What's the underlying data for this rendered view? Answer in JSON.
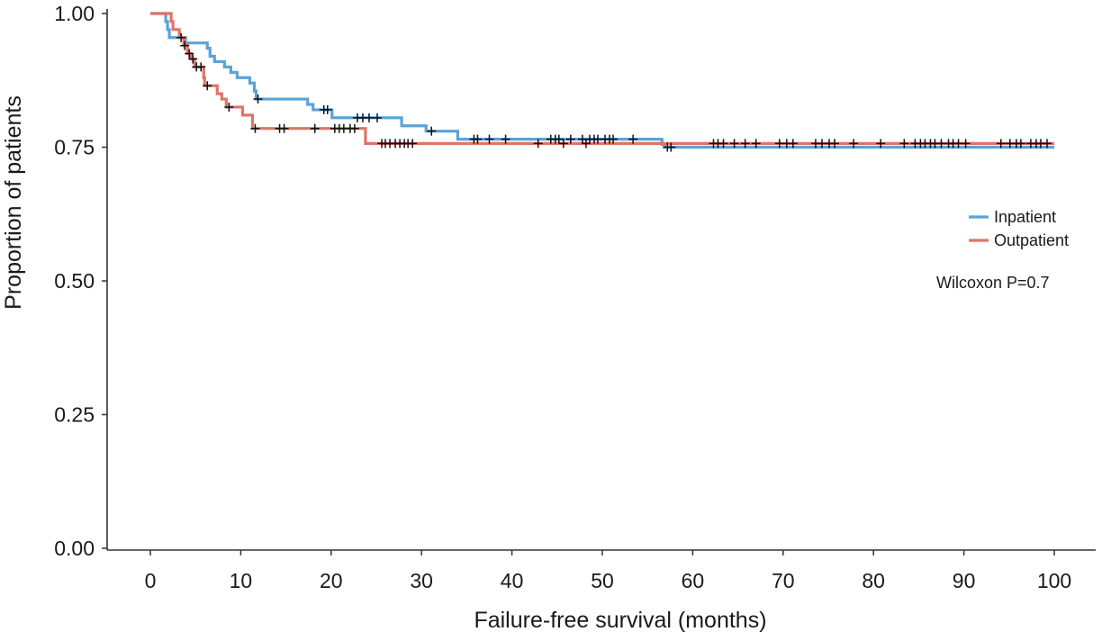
{
  "chart_data": {
    "type": "line",
    "subtype": "kaplan-meier step curve with censor marks",
    "xlabel": "Failure-free survival (months)",
    "ylabel": "Proportion of patients",
    "xlim": [
      -5,
      105
    ],
    "ylim": [
      0,
      1
    ],
    "x_ticks": [
      0,
      10,
      20,
      30,
      40,
      50,
      60,
      70,
      80,
      90,
      100
    ],
    "x_tick_labels": [
      "0",
      "10",
      "20",
      "30",
      "40",
      "50",
      "60",
      "70",
      "80",
      "90",
      "100"
    ],
    "y_ticks": [
      0,
      0.25,
      0.5,
      0.75,
      1.0
    ],
    "y_tick_labels": [
      "0.00",
      "0.25",
      "0.50",
      "0.75",
      "1.00"
    ],
    "grid": false,
    "legend_position": "right",
    "annotation": "Wilcoxon P=0.7",
    "series": [
      {
        "name": "Inpatient",
        "color": "#5ba3d9",
        "steps": [
          [
            0,
            1.0
          ],
          [
            1.7,
            0.985
          ],
          [
            1.9,
            0.97
          ],
          [
            2.1,
            0.955
          ],
          [
            3.9,
            0.945
          ],
          [
            6.3,
            0.935
          ],
          [
            6.6,
            0.92
          ],
          [
            7.1,
            0.91
          ],
          [
            8.2,
            0.9
          ],
          [
            8.9,
            0.89
          ],
          [
            9.6,
            0.88
          ],
          [
            11.0,
            0.87
          ],
          [
            11.5,
            0.855
          ],
          [
            11.7,
            0.84
          ],
          [
            17.4,
            0.83
          ],
          [
            18.0,
            0.82
          ],
          [
            20.1,
            0.805
          ],
          [
            27.8,
            0.79
          ],
          [
            30.5,
            0.78
          ],
          [
            34.0,
            0.765
          ],
          [
            56.6,
            0.755
          ],
          [
            56.9,
            0.75
          ],
          [
            100.0,
            0.75
          ]
        ],
        "censor_x": [
          11.9,
          19.2,
          19.6,
          22.9,
          23.5,
          24.2,
          25.1,
          31.1,
          35.8,
          36.2,
          37.5,
          39.3,
          44.3,
          44.8,
          45.2,
          46.5,
          47.8,
          48.6,
          49.1,
          49.5,
          50.3,
          50.8,
          51.2,
          53.4,
          57.2,
          57.6
        ]
      },
      {
        "name": "Outpatient",
        "color": "#e07468",
        "steps": [
          [
            0,
            1.0
          ],
          [
            2.3,
            0.985
          ],
          [
            2.5,
            0.97
          ],
          [
            3.2,
            0.955
          ],
          [
            3.7,
            0.94
          ],
          [
            4.1,
            0.925
          ],
          [
            4.5,
            0.915
          ],
          [
            4.9,
            0.9
          ],
          [
            5.9,
            0.88
          ],
          [
            6.0,
            0.865
          ],
          [
            7.4,
            0.85
          ],
          [
            7.9,
            0.84
          ],
          [
            8.4,
            0.825
          ],
          [
            10.2,
            0.81
          ],
          [
            11.3,
            0.785
          ],
          [
            23.8,
            0.757
          ],
          [
            100.0,
            0.757
          ]
        ],
        "censor_x": [
          3.4,
          3.8,
          4.3,
          4.7,
          5.1,
          5.6,
          6.3,
          8.7,
          11.6,
          14.3,
          14.8,
          18.2,
          20.4,
          20.9,
          21.4,
          22.1,
          22.6,
          25.6,
          26.0,
          26.5,
          27.1,
          27.6,
          28.1,
          28.5,
          29.0,
          42.9,
          45.7,
          48.2,
          62.3,
          62.8,
          63.4,
          64.6,
          65.8,
          67.0,
          69.6,
          70.4,
          71.1,
          73.6,
          74.3,
          75.1,
          75.7,
          77.8,
          80.8,
          83.4,
          84.6,
          85.2,
          85.7,
          86.3,
          86.8,
          87.5,
          88.3,
          88.8,
          89.4,
          90.2,
          94.1,
          95.1,
          95.8,
          96.3,
          97.4,
          98.0,
          98.5,
          99.2
        ]
      }
    ]
  }
}
